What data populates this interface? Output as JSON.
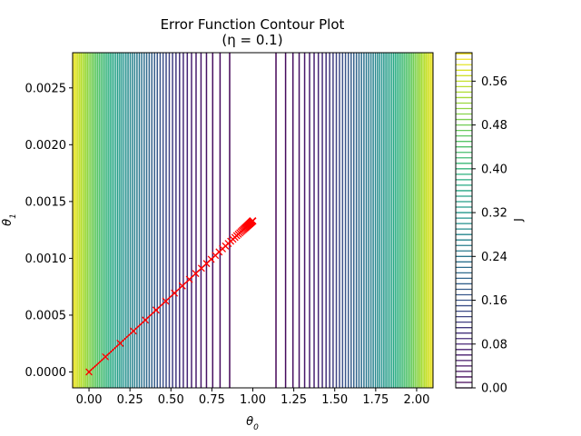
{
  "chart_data": {
    "type": "contour",
    "title": "Error Function Contour Plot",
    "subtitle": "(η = 0.1)",
    "xlabel": "θ0",
    "ylabel": "θ1",
    "colorbar_label": "J",
    "xlim": [
      -0.1,
      2.1
    ],
    "ylim": [
      -0.00014,
      0.00281
    ],
    "x_ticks": [
      0.0,
      0.25,
      0.5,
      0.75,
      1.0,
      1.25,
      1.5,
      1.75,
      2.0
    ],
    "x_tick_labels": [
      "0.00",
      "0.25",
      "0.50",
      "0.75",
      "1.00",
      "1.25",
      "1.50",
      "1.75",
      "2.00"
    ],
    "y_ticks": [
      0.0,
      0.0005,
      0.001,
      0.0015,
      0.002,
      0.0025
    ],
    "y_tick_labels": [
      "0.0000",
      "0.0005",
      "0.0010",
      "0.0015",
      "0.0020",
      "0.0025"
    ],
    "colorbar_ticks": [
      0.0,
      0.08,
      0.16,
      0.24,
      0.32,
      0.4,
      0.48,
      0.56
    ],
    "colorbar_tick_labels": [
      "0.00",
      "0.08",
      "0.16",
      "0.24",
      "0.32",
      "0.40",
      "0.48",
      "0.56"
    ],
    "colorbar_range": [
      0.0,
      0.612
    ],
    "colormap": "viridis",
    "contour_function": "J = 0.5 * (θ0 - 1)^2",
    "contour_levels": {
      "start": 0.0,
      "step": 0.01,
      "count": 62
    },
    "path": {
      "color": "#ff0000",
      "marker": "x",
      "steps": 70,
      "start": [
        0.0,
        0.0
      ],
      "end": [
        1.0,
        0.00133
      ],
      "learning_rate": 0.1
    }
  }
}
